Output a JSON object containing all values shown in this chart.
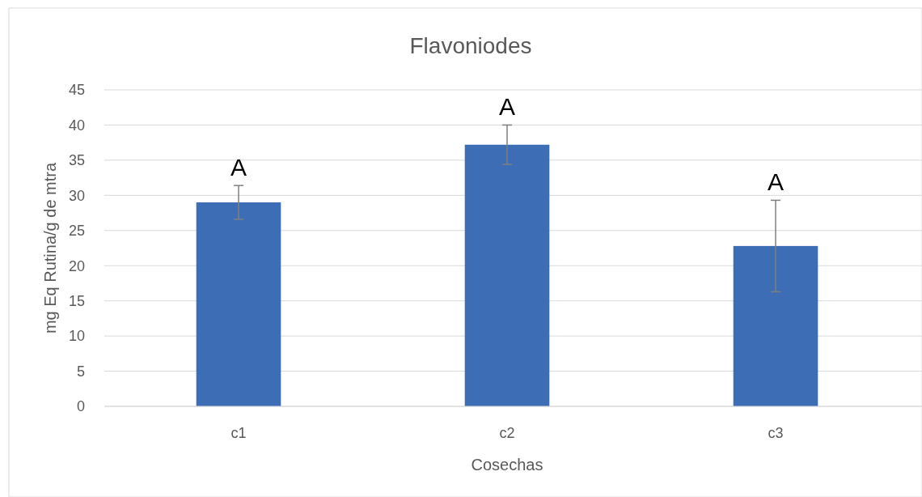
{
  "chart_data": {
    "type": "bar",
    "title": "Flavoniodes",
    "xlabel": "Cosechas",
    "ylabel": "mg Eq Rutina/g de mtra",
    "categories": [
      "c1",
      "c2",
      "c3"
    ],
    "values": [
      29,
      37.2,
      22.8
    ],
    "errors": [
      2.4,
      2.8,
      6.5
    ],
    "color": "#3d6db5",
    "ylim": [
      0,
      45
    ],
    "yticks": [
      0,
      5,
      10,
      15,
      20,
      25,
      30,
      35,
      40,
      45
    ],
    "grid": "y",
    "annotations": [
      "A",
      "A",
      "A"
    ]
  }
}
